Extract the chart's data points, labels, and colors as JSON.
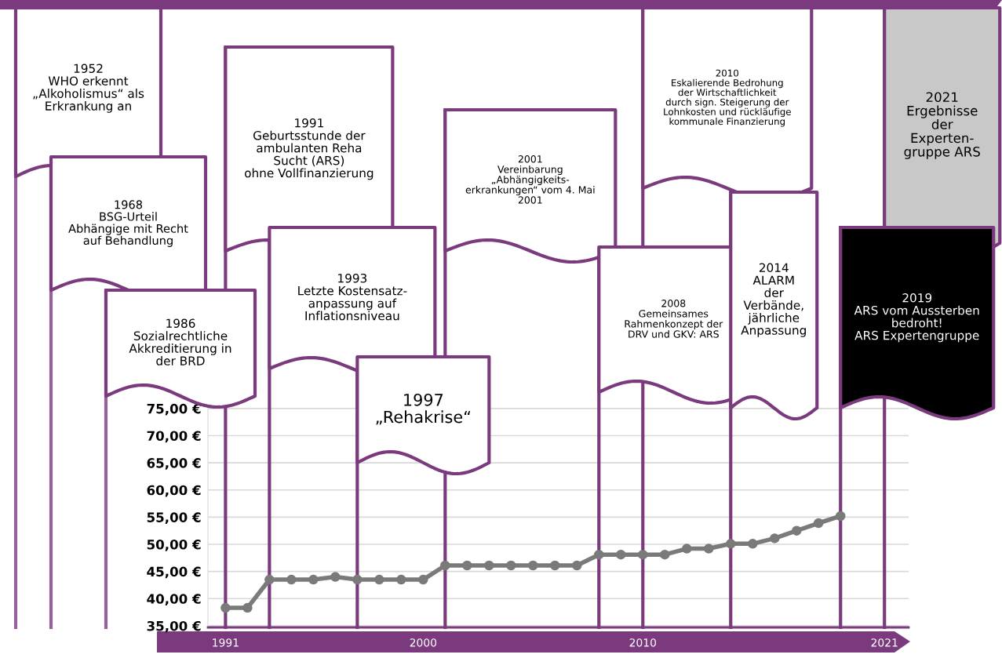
{
  "chart_data": {
    "type": "line",
    "x": [
      1991,
      1992,
      1993,
      1994,
      1995,
      1996,
      1997,
      1998,
      1999,
      2000,
      2001,
      2002,
      2003,
      2004,
      2005,
      2006,
      2007,
      2008,
      2009,
      2010,
      2011,
      2012,
      2013,
      2014,
      2015,
      2016,
      2017,
      2018,
      2019
    ],
    "series": [
      {
        "color": "#7a7a7a",
        "values": [
          38.3,
          38.3,
          43.5,
          43.5,
          43.5,
          44.0,
          43.5,
          43.5,
          43.5,
          43.5,
          46.1,
          46.1,
          46.1,
          46.1,
          46.1,
          46.1,
          46.1,
          48.1,
          48.1,
          48.1,
          48.1,
          49.2,
          49.2,
          50.1,
          50.1,
          51.1,
          52.5,
          53.9,
          55.2
        ]
      }
    ],
    "xlim": [
      1990.2,
      2022.1
    ],
    "xticks": [
      1991,
      2000,
      2010,
      2021
    ],
    "ylim": [
      34.7,
      77
    ],
    "yticks": [
      {
        "value": 35,
        "label": "35,00 €"
      },
      {
        "value": 40,
        "label": "40,00 €"
      },
      {
        "value": 45,
        "label": "45,00 €"
      },
      {
        "value": 50,
        "label": "50,00 €"
      },
      {
        "value": 55,
        "label": "55,00 €"
      },
      {
        "value": 60,
        "label": "60,00 €"
      },
      {
        "value": 65,
        "label": "65,00 €"
      },
      {
        "value": 70,
        "label": "70,00 €"
      },
      {
        "value": 75,
        "label": "75,00 €"
      }
    ],
    "grid": "y",
    "marker": "circle",
    "line_style": "solid",
    "ref_lines": [
      {
        "axis": "x",
        "value": 1991,
        "color": "#7b3a7e",
        "label": "1991\nGeburtsstunde der\nambulanten Reha\nSucht (ARS)\nohne Vollfinanzierung"
      },
      {
        "axis": "x",
        "value": 1993,
        "color": "#7b3a7e",
        "label": "1993\nLetzte Kostensatz-\nanpassung auf\nInflationsniveau"
      },
      {
        "axis": "x",
        "value": 1997,
        "color": "#7b3a7e",
        "label": "1997\n„Rehakrise“"
      },
      {
        "axis": "x",
        "value": 2001,
        "color": "#7b3a7e",
        "label": "2001\nVereinbarung\n„Abhängigkeits-\nerkrankungen“ vom 4. Mai\n2001"
      },
      {
        "axis": "x",
        "value": 2008,
        "color": "#7b3a7e",
        "label": "2008\nGemeinsames\nRahmenkonzept der\nDRV und GKV: ARS"
      },
      {
        "axis": "x",
        "value": 2010,
        "color": "#7b3a7e",
        "label": "2010\nEskalierende Bedrohung\nder Wirtschaftlichkeit\ndurch sign. Steigerung der\nLohnkosten und rückläufige\nkommunale Finanzierung"
      },
      {
        "axis": "x",
        "value": 2014,
        "color": "#7b3a7e",
        "label": "2014\nALARM\nder\nVerbände,\njährliche\nAnpassung"
      },
      {
        "axis": "x",
        "value": 2019,
        "color": "#7b3a7e",
        "label": "2019\nARS vom Aussterben\nbedroht!\nARS Expertengruppe"
      },
      {
        "axis": "x",
        "value": 2021,
        "color": "#7b3a7e",
        "label": "2021\nErgebnisse\nder\nExperten-\ngruppe ARS"
      }
    ],
    "annotations": [
      "1952\nWHO erkennt\n„Alkoholismus“ als\nErkrankung an",
      "1968\nBSG-Urteil\nAbhängige mit Recht\nauf Behandlung",
      "1986\nSozialrechtliche\nAkkreditierung in\nder BRD"
    ]
  }
}
